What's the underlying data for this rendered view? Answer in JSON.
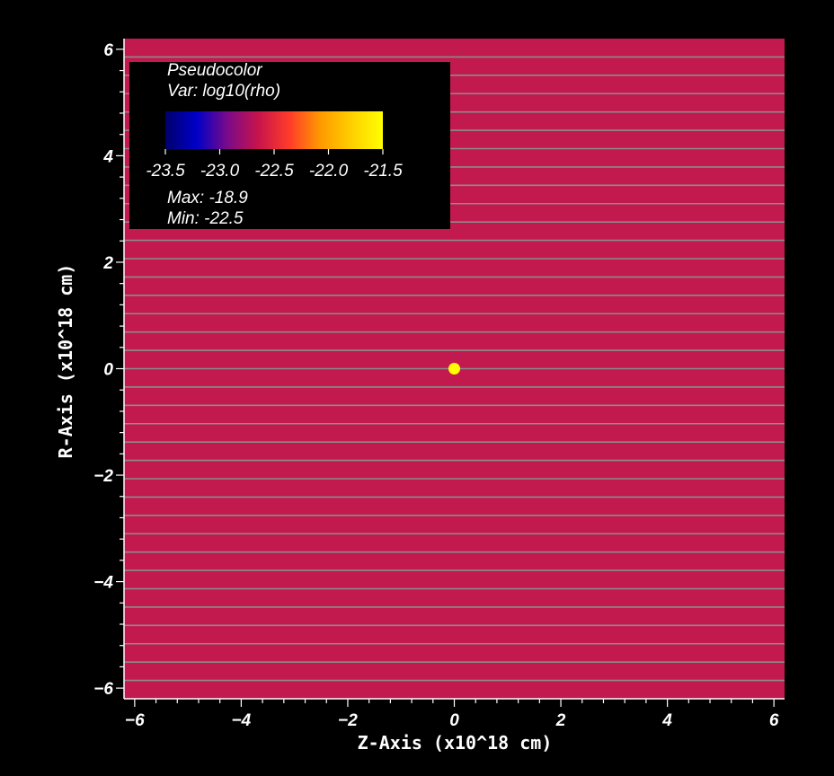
{
  "chart_data": {
    "type": "heatmap",
    "xlabel": "Z-Axis (x10^18 cm)",
    "ylabel": "R-Axis (x10^18 cm)",
    "xlim": [
      -6.2,
      6.2
    ],
    "ylim": [
      -6.2,
      6.2
    ],
    "x_ticks": [
      -6,
      -4,
      -2,
      0,
      2,
      4,
      6
    ],
    "y_ticks": [
      -6,
      -4,
      -2,
      0,
      2,
      4,
      6
    ],
    "x_tick_labels": [
      "−6",
      "−4",
      "−2",
      "0",
      "2",
      "4",
      "6"
    ],
    "y_tick_labels": [
      "−6",
      "−4",
      "−2",
      "0",
      "2",
      "4",
      "6"
    ],
    "minor_ticks_per_major": 5,
    "field_color": "#c2194f",
    "stripe_color": "#8c8c8c",
    "stripe_count": 36,
    "hotspot": {
      "z": 0,
      "r": 0,
      "color": "#ffff00"
    },
    "legend": {
      "placement": "top-left",
      "plot_type": "Pseudocolor",
      "variable": "Var: log10(rho)",
      "colorbar_min": -23.5,
      "colorbar_max": -21.5,
      "colorbar_ticks": [
        "-23.5",
        "-23.0",
        "-22.5",
        "-22.0",
        "-21.5"
      ],
      "colorbar_stops": [
        "#00006b",
        "#0000c8",
        "#7a0a8a",
        "#c8144b",
        "#ff3c2a",
        "#ff9a00",
        "#ffd000",
        "#ffff00"
      ],
      "max_label": "Max: -18.9",
      "min_label": "Min: -22.5"
    }
  }
}
